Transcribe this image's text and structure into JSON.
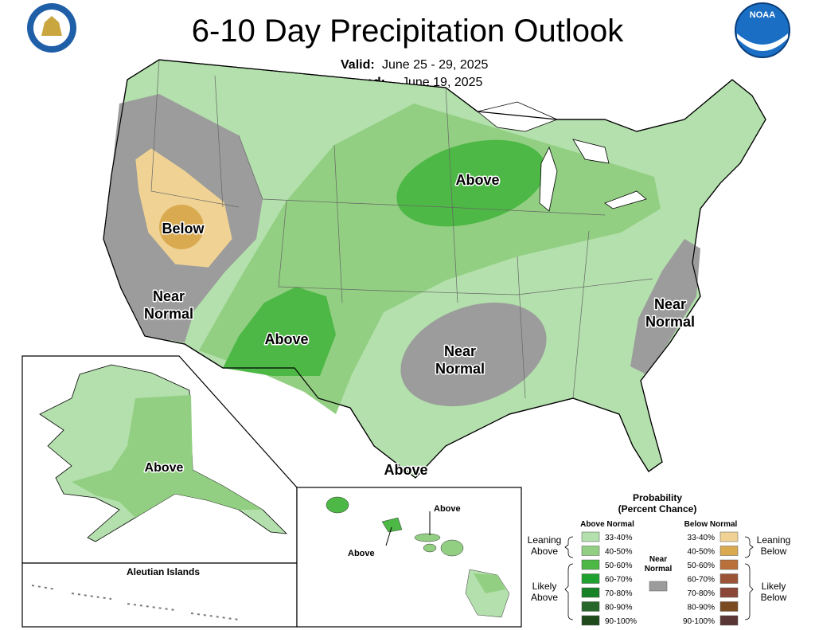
{
  "header": {
    "title": "6-10 Day Precipitation Outlook",
    "valid_label": "Valid:",
    "valid": "June 25 - 29, 2025",
    "issued_label": "Issued:",
    "issued": "June 19, 2025",
    "logo_text": "NOAA"
  },
  "map_labels": [
    "Below",
    "Above",
    "Above",
    "Above",
    "Above",
    "Above",
    "Above"
  ],
  "near_normal_labels": [
    [
      "Near",
      "Normal"
    ],
    [
      "Near",
      "Normal"
    ],
    [
      "Near",
      "Normal"
    ]
  ],
  "aleutian_label": "Aleutian Islands",
  "legend": {
    "title": [
      "Probability",
      "(Percent Chance)"
    ],
    "above": {
      "heading": "Above Normal",
      "groups": [
        [
          "Leaning",
          "Above"
        ],
        [
          "Likely",
          "Above"
        ]
      ],
      "items": [
        {
          "range": "33-40%",
          "color": "#b3e0ac"
        },
        {
          "range": "40-50%",
          "color": "#92cf82"
        },
        {
          "range": "50-60%",
          "color": "#4db845"
        },
        {
          "range": "60-70%",
          "color": "#1ea12f"
        },
        {
          "range": "70-80%",
          "color": "#178226"
        },
        {
          "range": "80-90%",
          "color": "#27662a"
        },
        {
          "range": "90-100%",
          "color": "#1f4a1c"
        }
      ]
    },
    "near": {
      "label": [
        "Near",
        "Normal"
      ],
      "color": "#9c9c9c"
    },
    "below": {
      "heading": "Below Normal",
      "groups": [
        [
          "Leaning",
          "Below"
        ],
        [
          "Likely",
          "Below"
        ]
      ],
      "items": [
        {
          "range": "33-40%",
          "color": "#f0d394"
        },
        {
          "range": "40-50%",
          "color": "#d9aa50"
        },
        {
          "range": "50-60%",
          "color": "#b9703a"
        },
        {
          "range": "60-70%",
          "color": "#9c5436"
        },
        {
          "range": "70-80%",
          "color": "#8b4638"
        },
        {
          "range": "80-90%",
          "color": "#7a4a20"
        },
        {
          "range": "90-100%",
          "color": "#5a3535"
        }
      ]
    }
  }
}
